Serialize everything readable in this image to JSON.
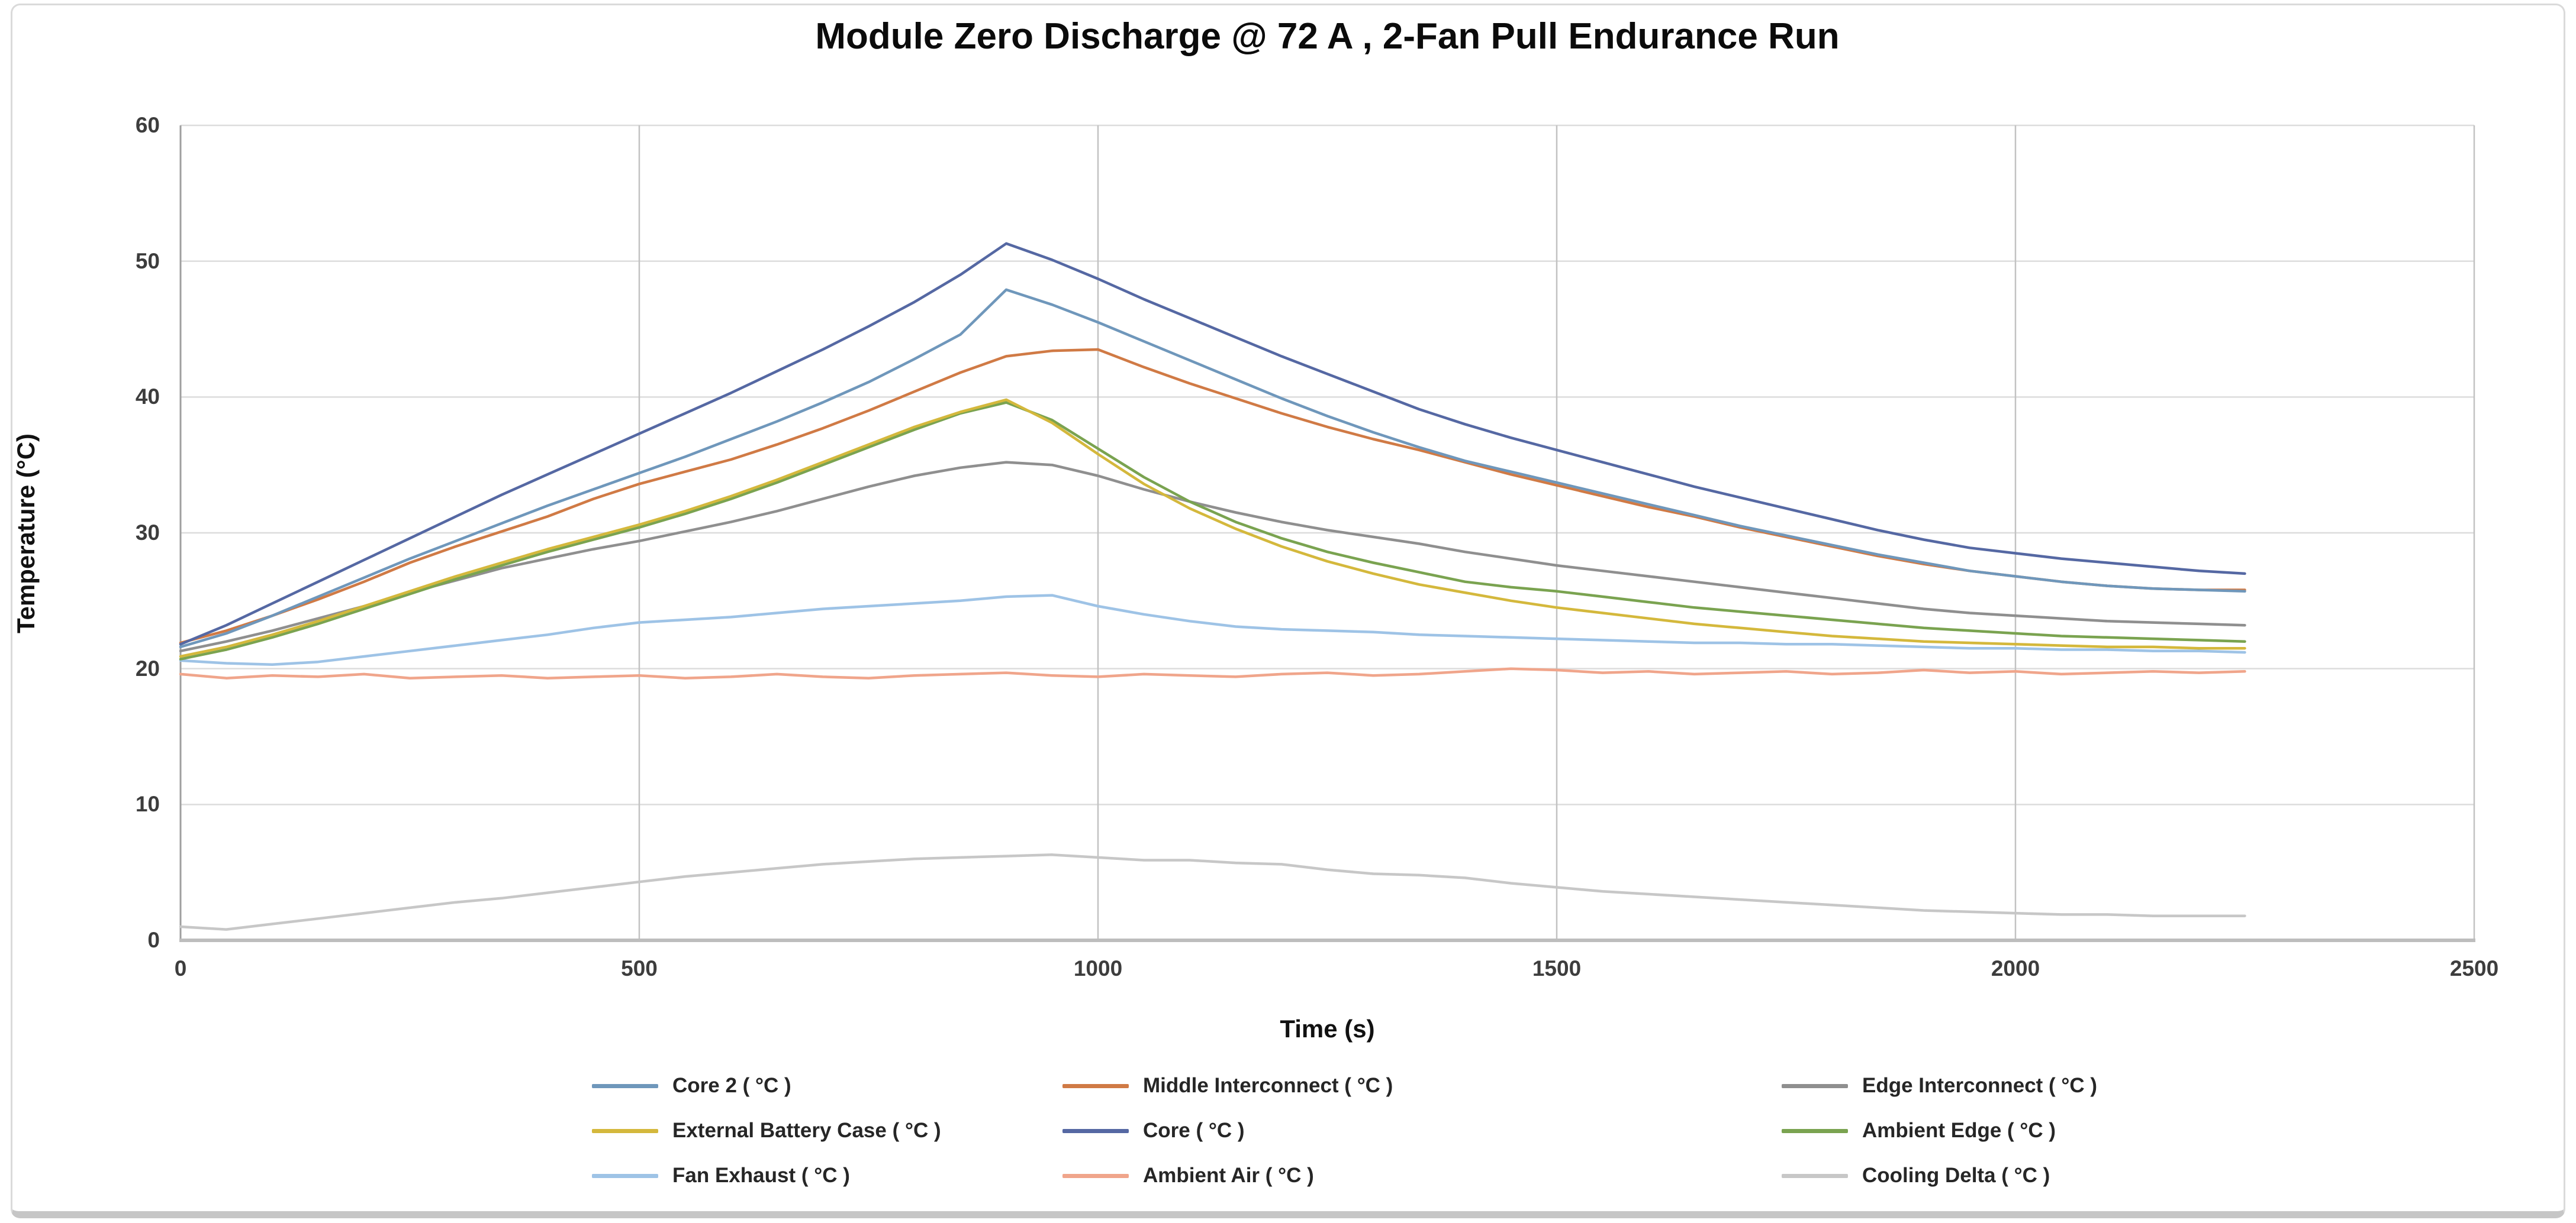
{
  "chart_data": {
    "type": "line",
    "title": "Module Zero Discharge @ 72 A , 2-Fan Pull Endurance Run",
    "xlabel": "Time (s)",
    "ylabel": "Temperature (°C)",
    "xlim": [
      0,
      2500
    ],
    "ylim": [
      0,
      60
    ],
    "x_ticks": [
      0,
      500,
      1000,
      1500,
      2000,
      2500
    ],
    "y_ticks": [
      0,
      10,
      20,
      30,
      40,
      50,
      60
    ],
    "grid": true,
    "legend_position": "bottom",
    "x": [
      0,
      50,
      100,
      150,
      200,
      250,
      300,
      350,
      400,
      450,
      500,
      550,
      600,
      650,
      700,
      750,
      800,
      850,
      900,
      950,
      1000,
      1050,
      1100,
      1150,
      1200,
      1250,
      1300,
      1350,
      1400,
      1450,
      1500,
      1550,
      1600,
      1650,
      1700,
      1750,
      1800,
      1850,
      1900,
      1950,
      2000,
      2050,
      2100,
      2150,
      2200,
      2250
    ],
    "series": [
      {
        "name": "cooling-delta",
        "label": "Cooling Delta ( °C )",
        "color": "#c7c7c7",
        "values": [
          1.0,
          0.8,
          1.2,
          1.6,
          2.0,
          2.4,
          2.8,
          3.1,
          3.5,
          3.9,
          4.3,
          4.7,
          5.0,
          5.3,
          5.6,
          5.8,
          6.0,
          6.1,
          6.2,
          6.3,
          6.1,
          5.9,
          5.9,
          5.7,
          5.6,
          5.2,
          4.9,
          4.8,
          4.6,
          4.2,
          3.9,
          3.6,
          3.4,
          3.2,
          3.0,
          2.8,
          2.6,
          2.4,
          2.2,
          2.1,
          2.0,
          1.9,
          1.9,
          1.8,
          1.8,
          1.8
        ]
      },
      {
        "name": "ambient-air",
        "label": "Ambient Air ( °C )",
        "color": "#f0a58b",
        "values": [
          19.6,
          19.3,
          19.5,
          19.4,
          19.6,
          19.3,
          19.4,
          19.5,
          19.3,
          19.4,
          19.5,
          19.3,
          19.4,
          19.6,
          19.4,
          19.3,
          19.5,
          19.6,
          19.7,
          19.5,
          19.4,
          19.6,
          19.5,
          19.4,
          19.6,
          19.7,
          19.5,
          19.6,
          19.8,
          20.0,
          19.9,
          19.7,
          19.8,
          19.6,
          19.7,
          19.8,
          19.6,
          19.7,
          19.9,
          19.7,
          19.8,
          19.6,
          19.7,
          19.8,
          19.7,
          19.8
        ]
      },
      {
        "name": "fan-exhaust",
        "label": "Fan Exhaust ( °C )",
        "color": "#9ec3e6",
        "values": [
          20.6,
          20.4,
          20.3,
          20.5,
          20.9,
          21.3,
          21.7,
          22.1,
          22.5,
          23.0,
          23.4,
          23.6,
          23.8,
          24.1,
          24.4,
          24.6,
          24.8,
          25.0,
          25.3,
          25.4,
          24.6,
          24.0,
          23.5,
          23.1,
          22.9,
          22.8,
          22.7,
          22.5,
          22.4,
          22.3,
          22.2,
          22.1,
          22.0,
          21.9,
          21.9,
          21.8,
          21.8,
          21.7,
          21.6,
          21.5,
          21.5,
          21.4,
          21.4,
          21.3,
          21.3,
          21.2
        ]
      },
      {
        "name": "edge-interconnect",
        "label": "Edge Interconnect ( °C )",
        "color": "#8f8f8f",
        "values": [
          21.3,
          22.0,
          22.8,
          23.7,
          24.6,
          25.6,
          26.5,
          27.4,
          28.1,
          28.8,
          29.4,
          30.1,
          30.8,
          31.6,
          32.5,
          33.4,
          34.2,
          34.8,
          35.2,
          35.0,
          34.2,
          33.2,
          32.3,
          31.5,
          30.8,
          30.2,
          29.7,
          29.2,
          28.6,
          28.1,
          27.6,
          27.2,
          26.8,
          26.4,
          26.0,
          25.6,
          25.2,
          24.8,
          24.4,
          24.1,
          23.9,
          23.7,
          23.5,
          23.4,
          23.3,
          23.2
        ]
      },
      {
        "name": "ambient-edge",
        "label": "Ambient Edge ( °C )",
        "color": "#7aa350",
        "values": [
          20.7,
          21.4,
          22.3,
          23.3,
          24.4,
          25.5,
          26.6,
          27.6,
          28.6,
          29.5,
          30.4,
          31.4,
          32.5,
          33.7,
          35.0,
          36.3,
          37.6,
          38.8,
          39.6,
          38.3,
          36.2,
          34.1,
          32.3,
          30.8,
          29.6,
          28.6,
          27.8,
          27.1,
          26.4,
          26.0,
          25.7,
          25.3,
          24.9,
          24.5,
          24.2,
          23.9,
          23.6,
          23.3,
          23.0,
          22.8,
          22.6,
          22.4,
          22.3,
          22.2,
          22.1,
          22.0
        ]
      },
      {
        "name": "external-battery-case",
        "label": "External Battery Case ( °C )",
        "color": "#d4b83c",
        "values": [
          20.9,
          21.6,
          22.5,
          23.5,
          24.6,
          25.7,
          26.8,
          27.8,
          28.8,
          29.7,
          30.6,
          31.6,
          32.7,
          33.9,
          35.2,
          36.5,
          37.8,
          38.9,
          39.8,
          38.1,
          35.8,
          33.6,
          31.8,
          30.3,
          29.0,
          27.9,
          27.0,
          26.2,
          25.6,
          25.0,
          24.5,
          24.1,
          23.7,
          23.3,
          23.0,
          22.7,
          22.4,
          22.2,
          22.0,
          21.9,
          21.8,
          21.7,
          21.6,
          21.6,
          21.5,
          21.5
        ]
      },
      {
        "name": "middle-interconnect",
        "label": "Middle Interconnect ( °C )",
        "color": "#d07a45",
        "values": [
          21.9,
          22.8,
          23.9,
          25.1,
          26.4,
          27.8,
          29.0,
          30.1,
          31.2,
          32.5,
          33.6,
          34.5,
          35.4,
          36.5,
          37.7,
          39.0,
          40.4,
          41.8,
          43.0,
          43.4,
          43.5,
          42.2,
          41.0,
          39.9,
          38.8,
          37.8,
          36.9,
          36.1,
          35.2,
          34.3,
          33.5,
          32.7,
          31.9,
          31.2,
          30.4,
          29.7,
          29.0,
          28.3,
          27.7,
          27.2,
          26.8,
          26.4,
          26.1,
          25.9,
          25.8,
          25.8
        ]
      },
      {
        "name": "core-2",
        "label": "Core 2 ( °C )",
        "color": "#6f97bb",
        "values": [
          21.6,
          22.6,
          23.9,
          25.3,
          26.7,
          28.1,
          29.4,
          30.7,
          32.0,
          33.2,
          34.4,
          35.6,
          36.9,
          38.2,
          39.6,
          41.1,
          42.8,
          44.6,
          47.9,
          46.8,
          45.5,
          44.1,
          42.7,
          41.3,
          39.9,
          38.6,
          37.4,
          36.3,
          35.3,
          34.5,
          33.7,
          32.9,
          32.1,
          31.3,
          30.5,
          29.8,
          29.1,
          28.4,
          27.8,
          27.2,
          26.8,
          26.4,
          26.1,
          25.9,
          25.8,
          25.7
        ]
      },
      {
        "name": "core",
        "label": "Core ( °C )",
        "color": "#5568a3",
        "values": [
          21.8,
          23.2,
          24.8,
          26.4,
          28.0,
          29.6,
          31.2,
          32.8,
          34.3,
          35.8,
          37.3,
          38.8,
          40.3,
          41.9,
          43.5,
          45.2,
          47.0,
          49.0,
          51.3,
          50.1,
          48.7,
          47.2,
          45.8,
          44.4,
          43.0,
          41.7,
          40.4,
          39.1,
          38.0,
          37.0,
          36.1,
          35.2,
          34.3,
          33.4,
          32.6,
          31.8,
          31.0,
          30.2,
          29.5,
          28.9,
          28.5,
          28.1,
          27.8,
          27.5,
          27.2,
          27.0
        ]
      }
    ],
    "legend": {
      "items": [
        {
          "label": "Core 2 ( °C )",
          "color": "#6f97bb"
        },
        {
          "label": "Middle Interconnect ( °C )",
          "color": "#d07a45"
        },
        {
          "label": "Edge Interconnect ( °C )",
          "color": "#8f8f8f"
        },
        {
          "label": "External Battery Case ( °C )",
          "color": "#d4b83c"
        },
        {
          "label": "Core ( °C )",
          "color": "#5568a3"
        },
        {
          "label": "Ambient Edge ( °C )",
          "color": "#7aa350"
        },
        {
          "label": "Fan Exhaust ( °C )",
          "color": "#9ec3e6"
        },
        {
          "label": "Ambient Air ( °C )",
          "color": "#f0a58b"
        },
        {
          "label": "Cooling Delta ( °C )",
          "color": "#c7c7c7"
        }
      ]
    }
  }
}
